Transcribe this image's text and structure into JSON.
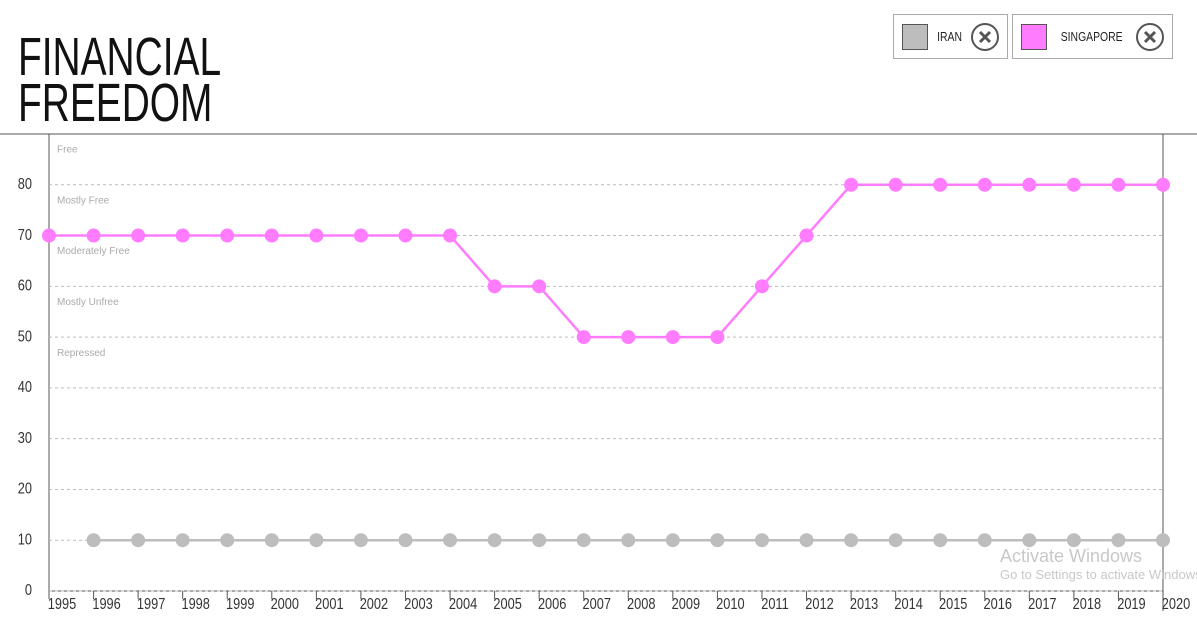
{
  "chart_data": {
    "type": "line",
    "title": [
      "FINANCIAL",
      "FREEDOM"
    ],
    "x": [
      1995,
      1996,
      1997,
      1998,
      1999,
      2000,
      2001,
      2002,
      2003,
      2004,
      2005,
      2006,
      2007,
      2008,
      2009,
      2010,
      2011,
      2012,
      2013,
      2014,
      2015,
      2016,
      2017,
      2018,
      2019,
      2020
    ],
    "xlim": [
      1995,
      2020
    ],
    "xticks": [
      1995,
      1996,
      1997,
      1998,
      1999,
      2000,
      2001,
      2002,
      2003,
      2004,
      2005,
      2006,
      2007,
      2008,
      2009,
      2010,
      2011,
      2012,
      2013,
      2014,
      2015,
      2016,
      2017,
      2018,
      2019,
      2020
    ],
    "ylim": [
      0,
      90
    ],
    "yticks": [
      0,
      10,
      20,
      30,
      40,
      50,
      60,
      70,
      80
    ],
    "grid": true,
    "annotations": [
      "Free",
      "Mostly Free",
      "Moderately Free",
      "Mostly Unfree",
      "Repressed"
    ],
    "series": [
      {
        "name": "IRAN",
        "color": "#bdbdbd",
        "values": [
          null,
          10,
          10,
          10,
          10,
          10,
          10,
          10,
          10,
          10,
          10,
          10,
          10,
          10,
          10,
          10,
          10,
          10,
          10,
          10,
          10,
          10,
          10,
          10,
          10,
          10
        ]
      },
      {
        "name": "SINGAPORE",
        "color": "#ff7cff",
        "values": [
          70,
          70,
          70,
          70,
          70,
          70,
          70,
          70,
          70,
          70,
          60,
          60,
          50,
          50,
          50,
          50,
          60,
          70,
          80,
          80,
          80,
          80,
          80,
          80,
          80,
          80
        ]
      }
    ]
  },
  "watermark": {
    "title": "Activate Windows",
    "subtitle": "Go to Settings to activate Windows."
  }
}
